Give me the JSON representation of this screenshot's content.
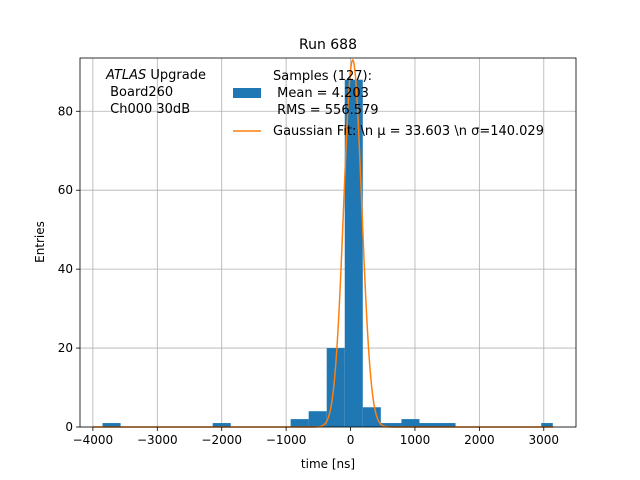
{
  "chart_data": {
    "type": "bar",
    "title": "Run 688",
    "xlabel": "time [ns]",
    "ylabel": "Entries",
    "xlim": [
      -4200,
      3500
    ],
    "ylim": [
      0,
      93.5
    ],
    "xticks": [
      -4000,
      -3000,
      -2000,
      -1000,
      0,
      1000,
      2000,
      3000
    ],
    "xtick_labels": [
      "−4000",
      "−3000",
      "−2000",
      "−1000",
      "0",
      "1000",
      "2000",
      "3000"
    ],
    "yticks": [
      0,
      20,
      40,
      60,
      80
    ],
    "ytick_labels": [
      "0",
      "20",
      "40",
      "60",
      "80"
    ],
    "grid": true,
    "annotation_lines": [
      "ATLAS",
      " Upgrade",
      " Board260",
      " Ch000 30dB"
    ],
    "bar_color": "#1f77b4",
    "fit_color": "#ff7f0e",
    "histogram": {
      "name": "Samples (127):\n Mean = 4.203\n RMS = 556.579",
      "bin_edges": [
        -3850,
        -3570,
        -2140,
        -1860,
        -930,
        -650,
        -370,
        -90,
        190,
        470,
        790,
        1070,
        1350,
        1630,
        2960,
        3140
      ],
      "counts": [
        1,
        0,
        1,
        0,
        2,
        4,
        20,
        88,
        5,
        1,
        2,
        1,
        1,
        0,
        1
      ]
    },
    "fit": {
      "name": "Gaussian Fit: \\n $\\mu$ = 33.603 \\n $\\sigma$=140.029",
      "mu": 33.603,
      "sigma": 140.029,
      "amplitude": 93,
      "x_range": [
        -4000,
        3150
      ]
    },
    "legend": {
      "placement": "top-center",
      "hist_lines": [
        "Samples (127):",
        " Mean = 4.203",
        " RMS = 556.579"
      ],
      "fit_label": "Gaussian Fit: \\n μ = 33.603 \\n σ=140.029"
    }
  }
}
